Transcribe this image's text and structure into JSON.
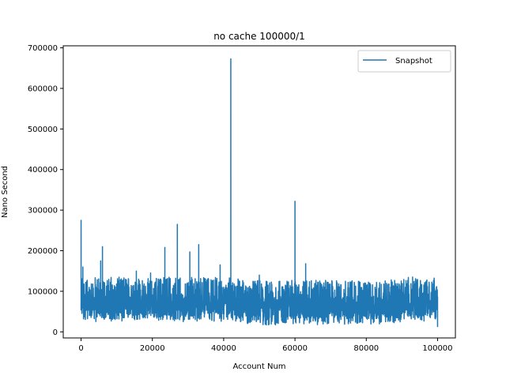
{
  "chart_data": {
    "type": "line",
    "title": "no cache 100000/1",
    "xlabel": "Account Num",
    "ylabel": "Nano Second",
    "xlim": [
      -5000,
      105000
    ],
    "ylim": [
      -15000,
      705000
    ],
    "xticks": [
      0,
      20000,
      40000,
      60000,
      80000,
      100000
    ],
    "yticks": [
      0,
      100000,
      200000,
      300000,
      400000,
      500000,
      600000,
      700000
    ],
    "grid": false,
    "legend_position": "top-right",
    "series": [
      {
        "name": "Snapshot",
        "color": "#1f77b4",
        "x_range": [
          0,
          100000
        ],
        "n_points": 100000,
        "typical_band": [
          30000,
          110000
        ],
        "dense_band": [
          40000,
          95000
        ],
        "spikes": [
          {
            "x": 0,
            "y": 275000
          },
          {
            "x": 500,
            "y": 160000
          },
          {
            "x": 6000,
            "y": 210000
          },
          {
            "x": 5500,
            "y": 175000
          },
          {
            "x": 15500,
            "y": 150000
          },
          {
            "x": 19500,
            "y": 145000
          },
          {
            "x": 23500,
            "y": 208000
          },
          {
            "x": 27000,
            "y": 265000
          },
          {
            "x": 30500,
            "y": 197000
          },
          {
            "x": 33000,
            "y": 215000
          },
          {
            "x": 39000,
            "y": 165000
          },
          {
            "x": 42000,
            "y": 673000
          },
          {
            "x": 50000,
            "y": 140000
          },
          {
            "x": 60000,
            "y": 322000
          },
          {
            "x": 63000,
            "y": 168000
          },
          {
            "x": 87000,
            "y": 128000
          },
          {
            "x": 93000,
            "y": 135000
          }
        ],
        "end_value": 12000
      }
    ]
  }
}
